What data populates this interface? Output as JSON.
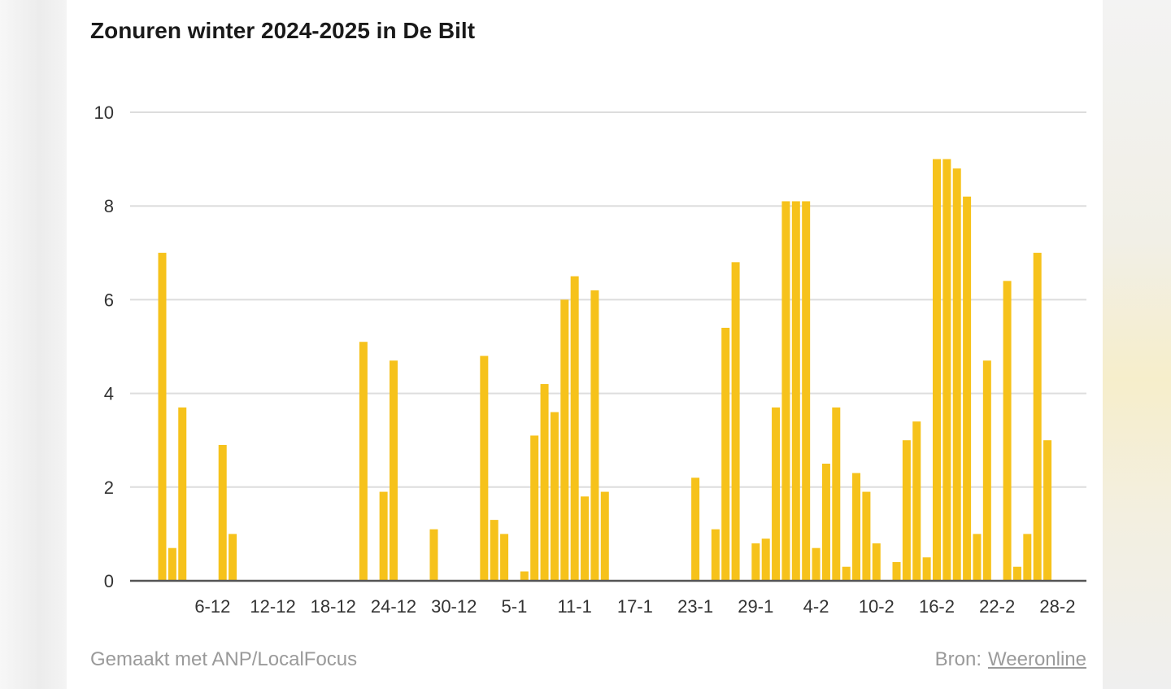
{
  "footer": {
    "made_with": "Gemaakt met ANP/LocalFocus",
    "source_label": "Bron:",
    "source_link": "Weeronline"
  },
  "colors": {
    "bar": "#f6c21b",
    "grid": "#dddddd",
    "baseline": "#555555",
    "text": "#333333"
  },
  "chart_data": {
    "type": "bar",
    "title": "Zonuren winter 2024-2025 in De Bilt",
    "xlabel": "",
    "ylabel": "",
    "ylim": [
      0,
      10
    ],
    "yticks": [
      0,
      2,
      4,
      6,
      8,
      10
    ],
    "grid": true,
    "legend": "none",
    "start_date": "1-12",
    "categories": [
      "1-12",
      "2-12",
      "3-12",
      "4-12",
      "5-12",
      "6-12",
      "7-12",
      "8-12",
      "9-12",
      "10-12",
      "11-12",
      "12-12",
      "13-12",
      "14-12",
      "15-12",
      "16-12",
      "17-12",
      "18-12",
      "19-12",
      "20-12",
      "21-12",
      "22-12",
      "23-12",
      "24-12",
      "25-12",
      "26-12",
      "27-12",
      "28-12",
      "29-12",
      "30-12",
      "31-12",
      "1-1",
      "2-1",
      "3-1",
      "4-1",
      "5-1",
      "6-1",
      "7-1",
      "8-1",
      "9-1",
      "10-1",
      "11-1",
      "12-1",
      "13-1",
      "14-1",
      "15-1",
      "16-1",
      "17-1",
      "18-1",
      "19-1",
      "20-1",
      "21-1",
      "22-1",
      "23-1",
      "24-1",
      "25-1",
      "26-1",
      "27-1",
      "28-1",
      "29-1",
      "30-1",
      "31-1",
      "1-2",
      "2-2",
      "3-2",
      "4-2",
      "5-2",
      "6-2",
      "7-2",
      "8-2",
      "9-2",
      "10-2",
      "11-2",
      "12-2",
      "13-2",
      "14-2",
      "15-2",
      "16-2",
      "17-2",
      "18-2",
      "19-2",
      "20-2",
      "21-2",
      "22-2",
      "23-2",
      "24-2",
      "25-2",
      "26-2",
      "27-2",
      "28-2"
    ],
    "values": [
      7.0,
      0.7,
      3.7,
      0,
      0,
      0,
      2.9,
      1.0,
      0,
      0,
      0,
      0,
      0,
      0,
      0,
      0,
      0,
      0,
      0,
      0,
      5.1,
      0,
      1.9,
      4.7,
      0,
      0,
      0,
      1.1,
      0,
      0,
      0,
      0,
      4.8,
      1.3,
      1.0,
      0,
      0.2,
      3.1,
      4.2,
      3.6,
      6.0,
      6.5,
      1.8,
      6.2,
      1.9,
      0,
      0,
      0,
      0,
      0,
      0,
      0,
      0,
      2.2,
      0,
      1.1,
      5.4,
      6.8,
      0,
      0.8,
      0.9,
      3.7,
      8.1,
      8.1,
      8.1,
      0.7,
      2.5,
      3.7,
      0.3,
      2.3,
      1.9,
      0.8,
      0,
      0.4,
      3.0,
      3.4,
      0.5,
      9.0,
      9.0,
      8.8,
      8.2,
      1.0,
      4.7,
      0,
      6.4,
      0.3,
      1.0,
      7.0,
      3.0,
      0
    ],
    "xtick_labels": [
      "6-12",
      "12-12",
      "18-12",
      "24-12",
      "30-12",
      "5-1",
      "11-1",
      "17-1",
      "23-1",
      "29-1",
      "4-2",
      "10-2",
      "16-2",
      "22-2",
      "28-2"
    ]
  }
}
